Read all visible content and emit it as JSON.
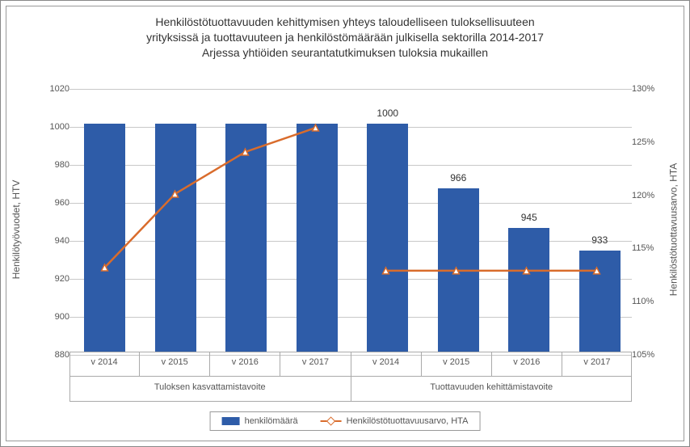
{
  "chart": {
    "type": "bar+line",
    "title_lines": [
      "Henkilöstötuottavuuden kehittymisen yhteys taloudelliseen tuloksellisuuteen",
      "yrityksissä ja tuottavuuteen ja henkilöstömäärään julkisella sektorilla 2014-2017",
      "Arjessa yhtiöiden seurantatutkimuksen tuloksia mukaillen"
    ],
    "title_fontsize": 14,
    "title_color": "#333333",
    "background_color": "#ffffff",
    "border_color": "#888888",
    "grid_color": "#c8c8c8",
    "axis_text_color": "#595959",
    "axis_fontsize": 11,
    "left_axis": {
      "label": "Henkilötyövuodet, HTV",
      "min": 880,
      "max": 1020,
      "tick_step": 20,
      "ticks": [
        880,
        900,
        920,
        940,
        960,
        980,
        1000,
        1020
      ]
    },
    "right_axis": {
      "label": "Henkilöstötuottavuusarvo, HTA",
      "min": 105,
      "max": 130,
      "tick_step": 5,
      "ticks": [
        "105%",
        "110%",
        "115%",
        "120%",
        "125%",
        "130%"
      ],
      "tick_values": [
        105,
        110,
        115,
        120,
        125,
        130
      ]
    },
    "groups": [
      {
        "label": "Tuloksen kasvattamistavoite",
        "categories": [
          "v 2014",
          "v 2015",
          "v 2016",
          "v 2017"
        ]
      },
      {
        "label": "Tuottavuuden kehittämistavoite",
        "categories": [
          "v 2014",
          "v 2015",
          "v 2016",
          "v 2017"
        ]
      }
    ],
    "bars": {
      "label": "henkilömäärä",
      "color": "#2e5ca8",
      "width_fraction": 0.58,
      "values": [
        1000,
        1000,
        1000,
        1000,
        1000,
        966,
        945,
        933
      ],
      "show_data_labels": [
        false,
        false,
        false,
        false,
        true,
        true,
        true,
        true
      ]
    },
    "line": {
      "label": "Henkilöstötuottavuusarvo, HTA",
      "color": "#d96c2c",
      "width": 2.5,
      "marker_style": "triangle",
      "marker_size": 8,
      "marker_fill": "#ffffff",
      "values_pct": [
        113,
        120,
        124,
        126.3,
        112.7,
        112.7,
        112.7,
        112.7
      ]
    },
    "legend": {
      "border_color": "#999999",
      "fontsize": 11,
      "position": "bottom-center"
    }
  }
}
